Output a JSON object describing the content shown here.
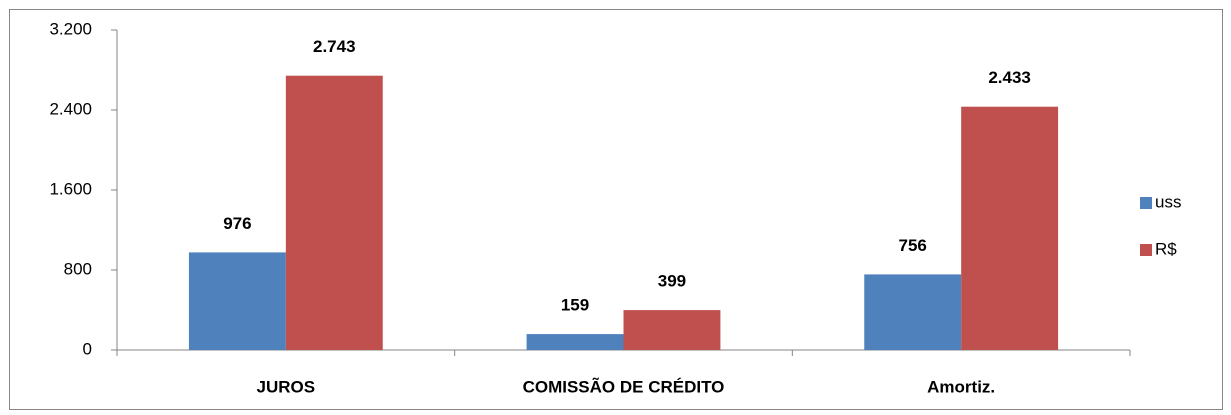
{
  "chart_data": {
    "type": "bar",
    "categories": [
      "JUROS",
      "COMISSÃO DE CRÉDITO",
      "Amortiz."
    ],
    "series": [
      {
        "name": "uss",
        "color": "#4f81bd",
        "values": [
          976,
          159,
          756
        ],
        "value_labels": [
          "976",
          "159",
          "756"
        ]
      },
      {
        "name": "R$",
        "color": "#c0504d",
        "values": [
          2743,
          399,
          2433
        ],
        "value_labels": [
          "2.743",
          "399",
          "2.433"
        ]
      }
    ],
    "ylim": [
      0,
      3200
    ],
    "yticks": [
      0,
      800,
      {
        "value": 1600,
        "label": "1.600"
      },
      {
        "value": 2400,
        "label": "2.400"
      },
      {
        "value": 3200,
        "label": "3.200"
      }
    ],
    "legend": "right"
  }
}
